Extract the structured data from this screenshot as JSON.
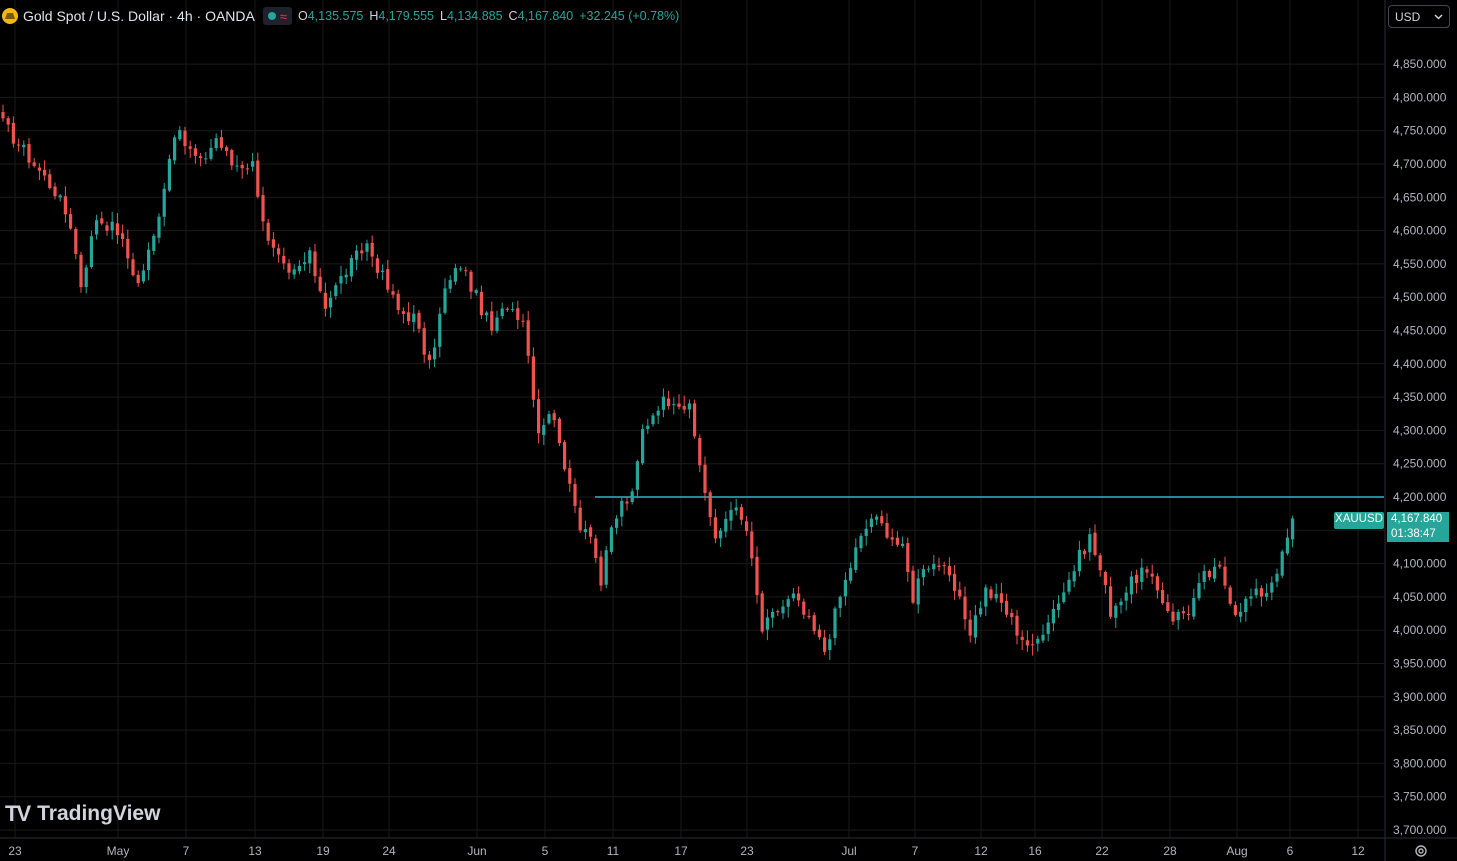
{
  "header": {
    "title": "Gold Spot / U.S. Dollar · 4h · OANDA",
    "ohlc": [
      {
        "k": "O",
        "v": "4,135.575"
      },
      {
        "k": "H",
        "v": "4,179.555"
      },
      {
        "k": "L",
        "v": "4,134.885"
      },
      {
        "k": "C",
        "v": "4,167.840"
      }
    ],
    "change": "+32.245 (+0.78%)"
  },
  "currency": {
    "label": "USD",
    "chevron": "chevron-down-icon"
  },
  "logo": {
    "mark": "TV",
    "name": "TradingView"
  },
  "price_badge": {
    "symbol": "XAUUSD",
    "price": "4,167.840",
    "countdown": "01:38:47"
  },
  "colors": {
    "up": "#26a69a",
    "down": "#ef5350",
    "hline": "#2fb7c6",
    "grid": "#1a1a1a",
    "background": "#000000"
  },
  "chart_data": {
    "type": "candlestick",
    "interval": "4h",
    "ylim": [
      3700,
      4900
    ],
    "y_ticks": [
      3700,
      3750,
      3800,
      3850,
      3900,
      3950,
      4000,
      4050,
      4100,
      4150,
      4200,
      4250,
      4300,
      4350,
      4400,
      4450,
      4500,
      4550,
      4600,
      4650,
      4700,
      4750,
      4800,
      4850
    ],
    "y_tick_labels": [
      "3,700.000",
      "3,750.000",
      "3,800.000",
      "3,850.000",
      "3,900.000",
      "3,950.000",
      "4,000.000",
      "4,050.000",
      "4,100.000",
      "4,150.000",
      "4,200.000",
      "4,250.000",
      "4,300.000",
      "4,350.000",
      "4,400.000",
      "4,450.000",
      "4,500.000",
      "4,550.000",
      "4,600.000",
      "4,650.000",
      "4,700.000",
      "4,750.000",
      "4,800.000",
      "4,850.000"
    ],
    "x_tick_labels": [
      "23",
      "May",
      "7",
      "13",
      "19",
      "24",
      "Jun",
      "5",
      "11",
      "17",
      "23",
      "Jul",
      "7",
      "12",
      "16",
      "22",
      "28",
      "Aug",
      "6",
      "12"
    ],
    "horizontal_line": 4200,
    "last_price": 4167.84,
    "close_path": [
      [
        0,
        4760
      ],
      [
        6,
        4700
      ],
      [
        10,
        4660
      ],
      [
        13,
        4610
      ],
      [
        15,
        4520
      ],
      [
        18,
        4620
      ],
      [
        22,
        4600
      ],
      [
        26,
        4520
      ],
      [
        29,
        4590
      ],
      [
        33,
        4750
      ],
      [
        38,
        4700
      ],
      [
        41,
        4740
      ],
      [
        44,
        4700
      ],
      [
        48,
        4700
      ],
      [
        51,
        4580
      ],
      [
        55,
        4530
      ],
      [
        59,
        4560
      ],
      [
        62,
        4490
      ],
      [
        66,
        4540
      ],
      [
        70,
        4580
      ],
      [
        73,
        4530
      ],
      [
        76,
        4480
      ],
      [
        79,
        4470
      ],
      [
        82,
        4395
      ],
      [
        85,
        4510
      ],
      [
        88,
        4550
      ],
      [
        91,
        4500
      ],
      [
        94,
        4450
      ],
      [
        97,
        4490
      ],
      [
        100,
        4470
      ],
      [
        103,
        4300
      ],
      [
        105,
        4330
      ],
      [
        107,
        4290
      ],
      [
        109,
        4210
      ],
      [
        111,
        4160
      ],
      [
        113,
        4150
      ],
      [
        115,
        4070
      ],
      [
        117,
        4150
      ],
      [
        119,
        4190
      ],
      [
        121,
        4200
      ],
      [
        123,
        4300
      ],
      [
        126,
        4340
      ],
      [
        129,
        4350
      ],
      [
        132,
        4330
      ],
      [
        134,
        4250
      ],
      [
        137,
        4130
      ],
      [
        140,
        4190
      ],
      [
        143,
        4150
      ],
      [
        146,
        4000
      ],
      [
        149,
        4030
      ],
      [
        152,
        4050
      ],
      [
        155,
        4010
      ],
      [
        158,
        3970
      ],
      [
        161,
        4050
      ],
      [
        164,
        4120
      ],
      [
        167,
        4170
      ],
      [
        170,
        4150
      ],
      [
        173,
        4120
      ],
      [
        175,
        4050
      ],
      [
        177,
        4100
      ],
      [
        180,
        4100
      ],
      [
        183,
        4060
      ],
      [
        186,
        4000
      ],
      [
        189,
        4060
      ],
      [
        192,
        4040
      ],
      [
        195,
        4000
      ],
      [
        198,
        3970
      ],
      [
        201,
        4020
      ],
      [
        204,
        4060
      ],
      [
        207,
        4110
      ],
      [
        209,
        4140
      ],
      [
        211,
        4090
      ],
      [
        213,
        4030
      ],
      [
        216,
        4060
      ],
      [
        219,
        4090
      ],
      [
        222,
        4060
      ],
      [
        225,
        4020
      ],
      [
        228,
        4030
      ],
      [
        231,
        4080
      ],
      [
        234,
        4090
      ],
      [
        237,
        4030
      ],
      [
        240,
        4050
      ],
      [
        243,
        4060
      ],
      [
        246,
        4110
      ],
      [
        248,
        4165
      ]
    ]
  }
}
